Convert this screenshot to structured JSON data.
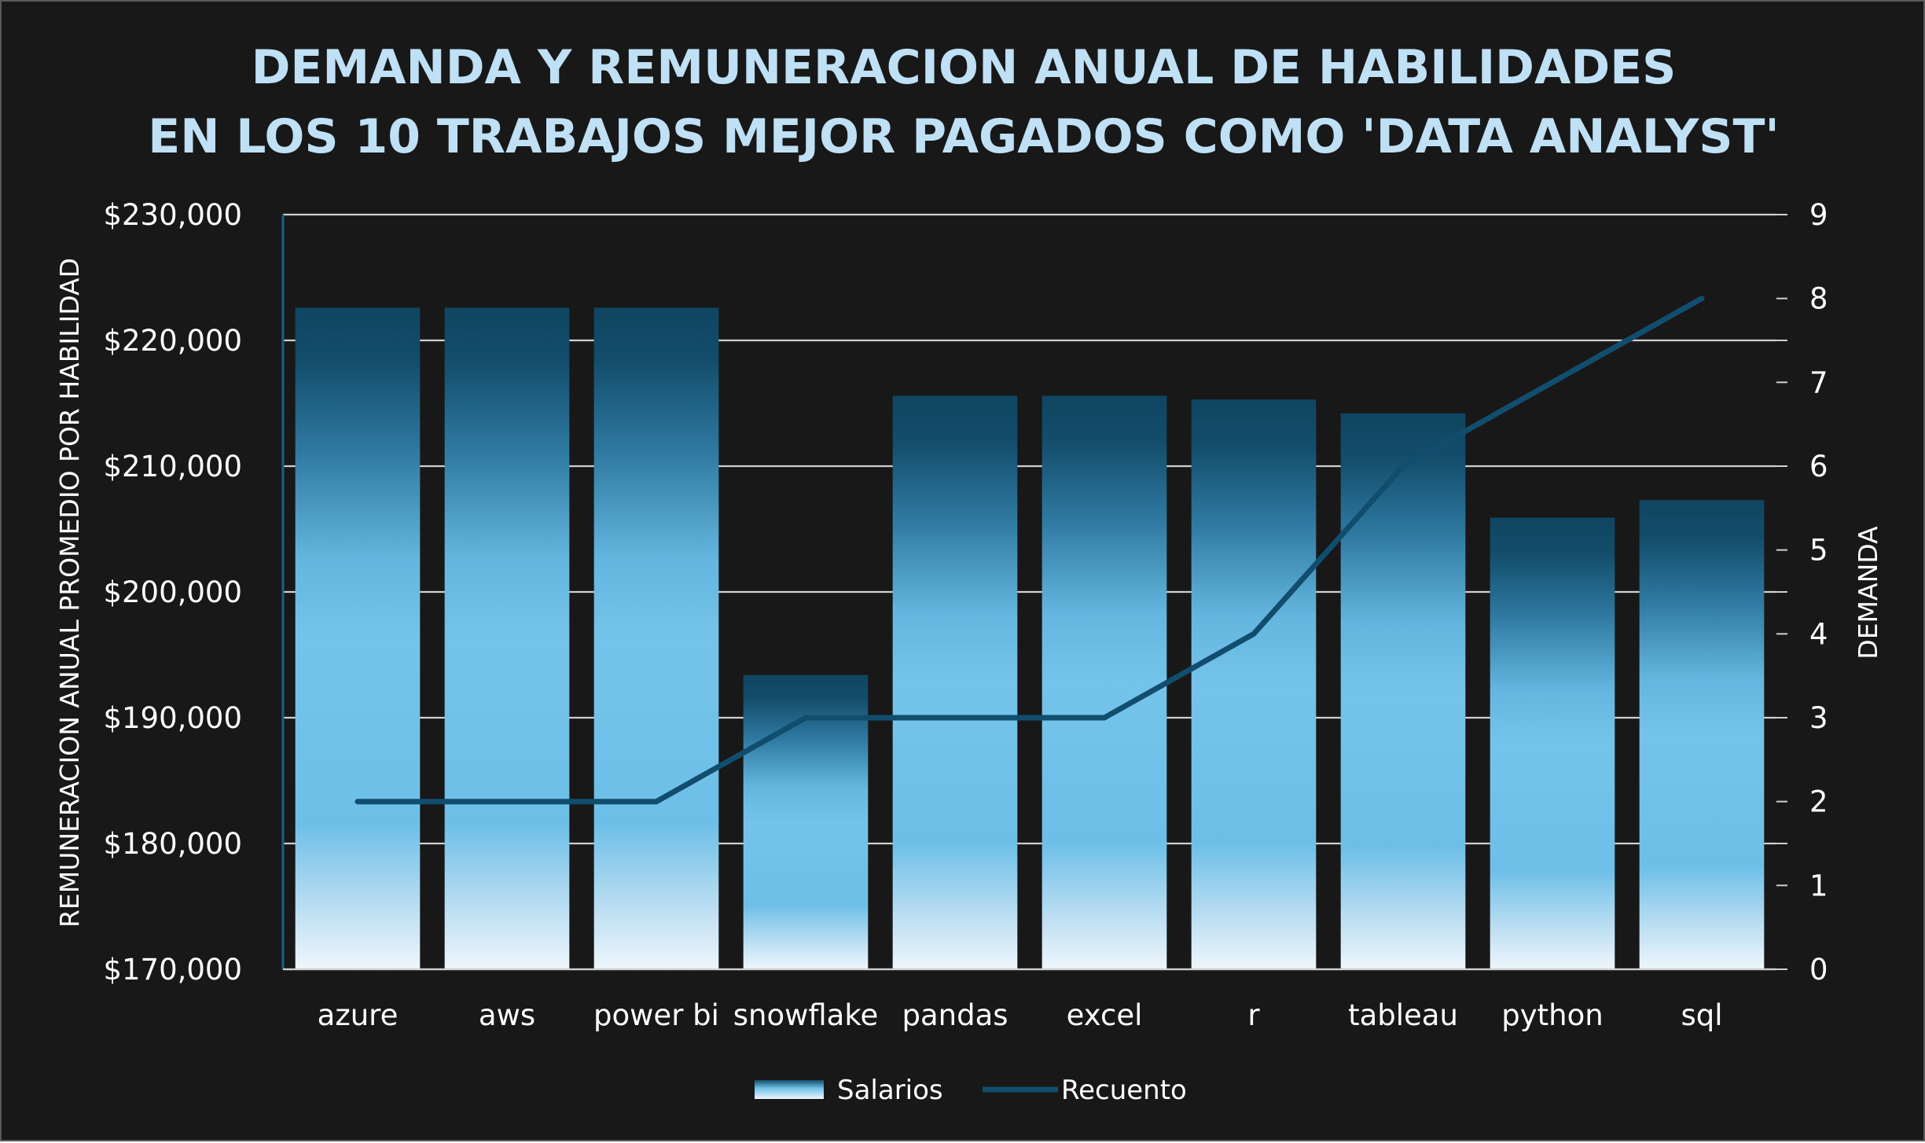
{
  "chart_data": {
    "type": "bar",
    "title_lines": [
      "DEMANDA Y REMUNERACION ANUAL DE HABILIDADES",
      "EN LOS 10 TRABAJOS MEJOR PAGADOS COMO 'DATA ANALYST'"
    ],
    "categories": [
      "azure",
      "aws",
      "power bi",
      "snowflake",
      "pandas",
      "excel",
      "r",
      "tableau",
      "python",
      "sql"
    ],
    "series": [
      {
        "name": "Salarios",
        "kind": "bar",
        "axis": "left",
        "values": [
          222600,
          222600,
          222600,
          193400,
          215600,
          215600,
          215300,
          214200,
          205900,
          207300
        ]
      },
      {
        "name": "Recuento",
        "kind": "line",
        "axis": "right",
        "values": [
          2,
          2,
          2,
          3,
          3,
          3,
          4,
          6,
          7,
          8
        ]
      }
    ],
    "y_left": {
      "label": "REMUNERACION  ANUAL PROMEDIO POR HABILIDAD",
      "range": [
        170000,
        230000
      ],
      "ticks": [
        "$170,000",
        "$180,000",
        "$190,000",
        "$200,000",
        "$210,000",
        "$220,000",
        "$230,000"
      ]
    },
    "y_right": {
      "label": "DEMANDA",
      "range": [
        0,
        9
      ],
      "ticks": [
        "0",
        "1",
        "2",
        "3",
        "4",
        "5",
        "6",
        "7",
        "8",
        "9"
      ]
    },
    "grid": true,
    "legend_position": "bottom",
    "colors": {
      "background": "#181818",
      "title": "#bfe0f5",
      "bar_light": "#eef6fc",
      "bar_mid": "#72c2ea",
      "bar_dark": "#0f4560",
      "line": "#114e6e",
      "grid": "#d0d0d0"
    }
  }
}
